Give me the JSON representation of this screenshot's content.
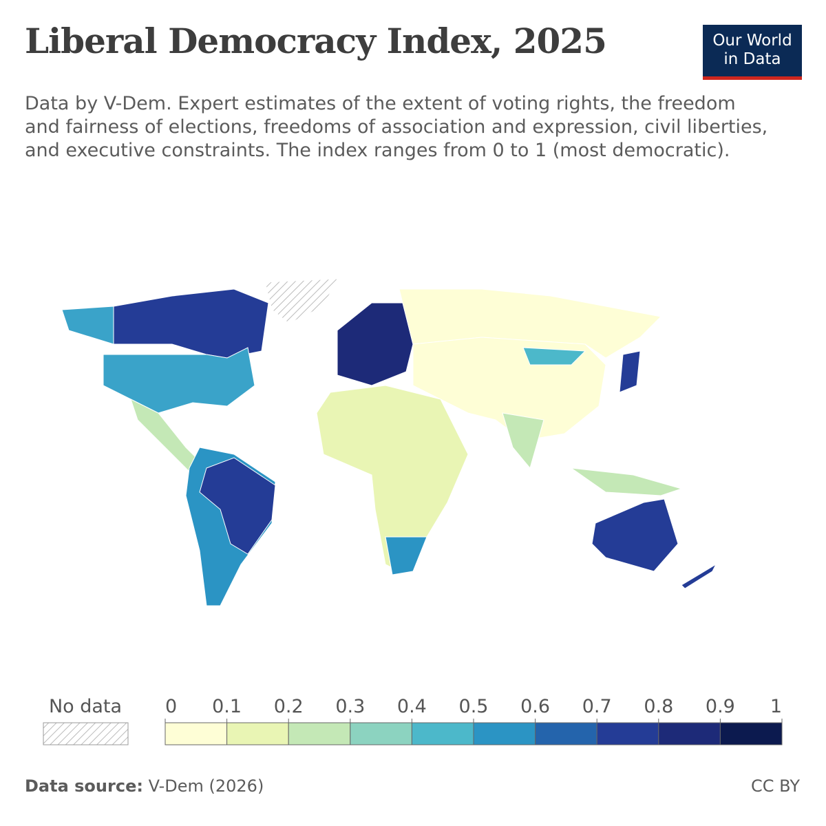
{
  "header": {
    "title": "Liberal Democracy Index, 2025",
    "subtitle": "Data by V-Dem. Expert estimates of the extent of voting rights, the freedom and fairness of elections, freedoms of association and expression, civil liberties, and executive constraints. The index ranges from 0 to 1 (most democratic).",
    "logo": [
      "Our World",
      "in Data"
    ]
  },
  "legend": {
    "no_data_label": "No data",
    "ticks": [
      0,
      0.1,
      0.2,
      0.3,
      0.4,
      0.5,
      0.6,
      0.7,
      0.8,
      0.9,
      1
    ],
    "colors": [
      "#fefed6",
      "#e9f5b4",
      "#c4e8b6",
      "#8cd3c0",
      "#4cb8ca",
      "#2b94c4",
      "#2464ac",
      "#243c96",
      "#1d2a78",
      "#0c1a4f"
    ]
  },
  "footer": {
    "source_label": "Data source:",
    "source": "V-Dem (2026)",
    "license": "CC BY"
  }
}
